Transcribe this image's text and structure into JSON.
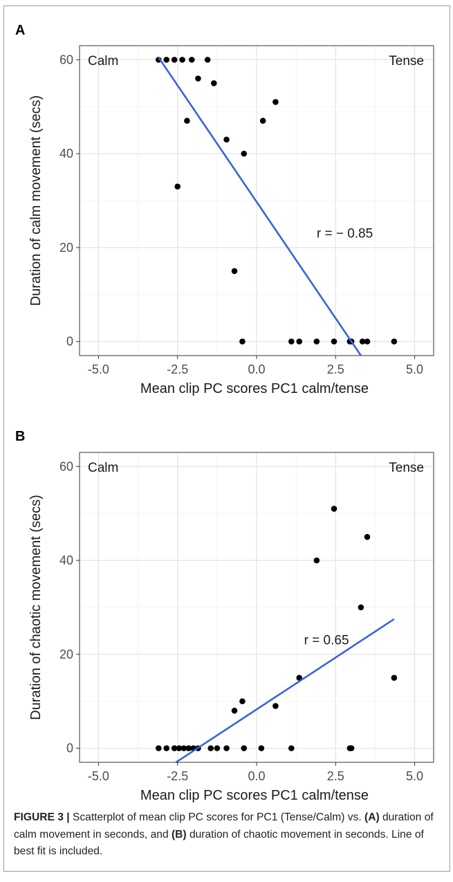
{
  "chart_data": [
    {
      "type": "scatter",
      "panel_letter": "A",
      "xlabel": "Mean clip PC scores PC1 calm/tense",
      "ylabel": "Duration of calm movement (secs)",
      "xlim": [
        -5.6,
        5.6
      ],
      "ylim": [
        -3,
        63
      ],
      "x_ticks": [
        "-5.0",
        "-2.5",
        "0.0",
        "2.5",
        "5.0"
      ],
      "x_tick_values": [
        -5,
        -2.5,
        0,
        2.5,
        5
      ],
      "y_ticks": [
        "0",
        "20",
        "40",
        "60"
      ],
      "y_tick_values": [
        0,
        20,
        40,
        60
      ],
      "grid": true,
      "annotations": {
        "left": "Calm",
        "right": "Tense",
        "r": "r = − 0.85"
      },
      "r_position": [
        1.9,
        23
      ],
      "fit_line": {
        "x1": -3.1,
        "y1": 60.5,
        "x2": 3.3,
        "y2": -3
      },
      "x": [
        -3.1,
        -2.85,
        -2.6,
        -2.35,
        -2.05,
        -1.55,
        -1.35,
        -1.85,
        -2.2,
        -2.5,
        -0.95,
        -0.4,
        0.2,
        0.6,
        -0.7,
        -0.45,
        1.1,
        1.35,
        1.9,
        2.45,
        2.95,
        3.0,
        3.35,
        3.5,
        4.35
      ],
      "y": [
        60,
        60,
        60,
        60,
        60,
        60,
        55,
        56,
        47,
        33,
        43,
        40,
        47,
        51,
        15,
        0,
        0,
        0,
        0,
        0,
        0,
        0,
        0,
        0,
        0
      ]
    },
    {
      "type": "scatter",
      "panel_letter": "B",
      "xlabel": "Mean clip PC scores PC1 calm/tense",
      "ylabel": "Duration of chaotic movement (secs)",
      "xlim": [
        -5.6,
        5.6
      ],
      "ylim": [
        -3,
        63
      ],
      "x_ticks": [
        "-5.0",
        "-2.5",
        "0.0",
        "2.5",
        "5.0"
      ],
      "x_tick_values": [
        -5,
        -2.5,
        0,
        2.5,
        5
      ],
      "y_ticks": [
        "0",
        "20",
        "40",
        "60"
      ],
      "y_tick_values": [
        0,
        20,
        40,
        60
      ],
      "grid": true,
      "annotations": {
        "left": "Calm",
        "right": "Tense",
        "r": "r = 0.65"
      },
      "r_position": [
        1.5,
        23
      ],
      "fit_line": {
        "x1": -2.55,
        "y1": -3,
        "x2": 4.35,
        "y2": 27.5
      },
      "x": [
        -3.1,
        -2.85,
        -2.6,
        -2.45,
        -2.3,
        -2.15,
        -2.0,
        -1.85,
        -1.45,
        -1.25,
        -0.95,
        -0.4,
        0.15,
        1.1,
        2.95,
        3.0,
        -0.7,
        -0.45,
        0.6,
        1.35,
        1.9,
        2.45,
        3.3,
        3.5,
        4.35
      ],
      "y": [
        0,
        0,
        0,
        0,
        0,
        0,
        0,
        0,
        0,
        0,
        0,
        0,
        0,
        0,
        0,
        0,
        8,
        10,
        9,
        15,
        40,
        51,
        30,
        45,
        15
      ]
    }
  ],
  "caption": {
    "figure_label": "FIGURE 3 |",
    "text_1": " Scatterplot of mean clip PC scores for PC1 (Tense/Calm) vs. ",
    "a_label": "(A)",
    "text_2": " duration of calm movement in seconds, and ",
    "b_label": "(B)",
    "text_3": " duration of chaotic movement in seconds. Line of best fit is included."
  }
}
